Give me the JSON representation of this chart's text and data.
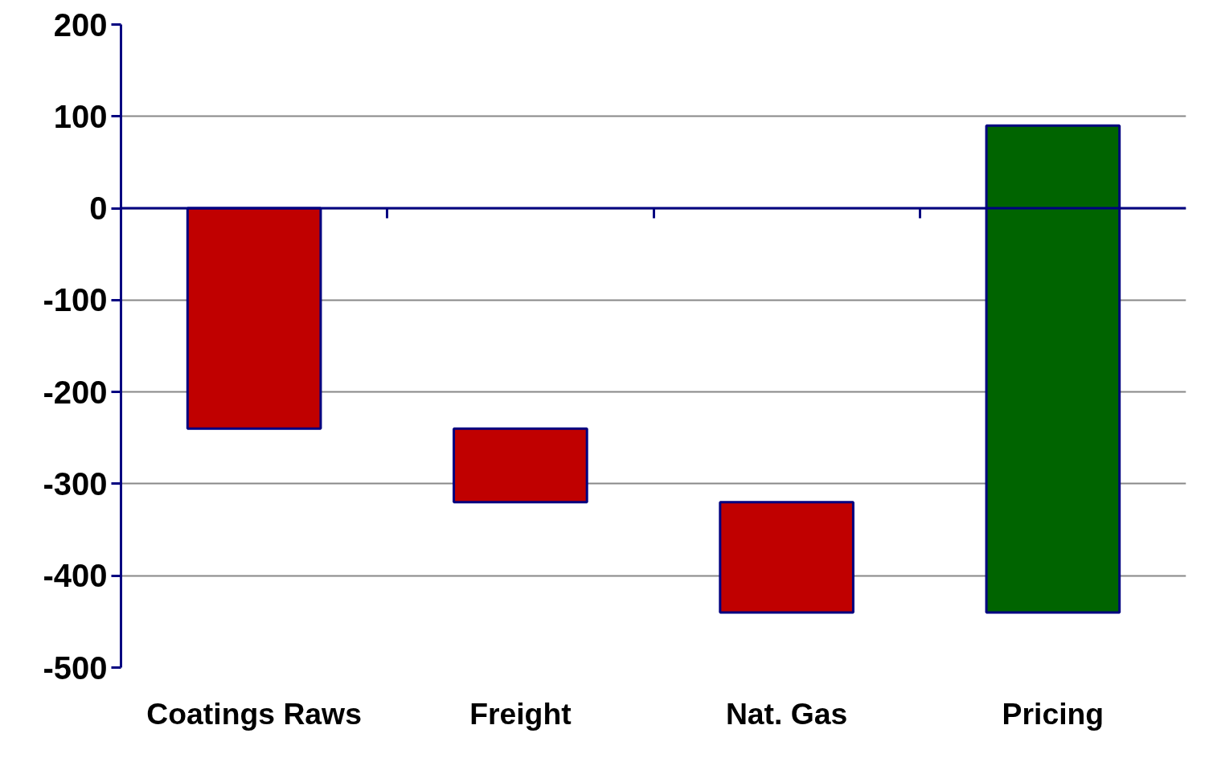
{
  "chart_data": {
    "type": "bar",
    "categories": [
      "Coatings Raws",
      "Freight",
      "Nat. Gas",
      "Pricing"
    ],
    "values": [
      -240,
      -80,
      -120,
      530
    ],
    "base": [
      0,
      -240,
      -320,
      -440
    ],
    "colors": [
      "#c00000",
      "#c00000",
      "#c00000",
      "#006400"
    ],
    "ylim": [
      -500,
      200
    ],
    "yticks": [
      -500,
      -400,
      -300,
      -200,
      -100,
      0,
      100,
      200
    ],
    "grid": "y",
    "ref_lines": [
      {
        "axis": "y",
        "value": 0,
        "color": "#000080"
      }
    ]
  }
}
